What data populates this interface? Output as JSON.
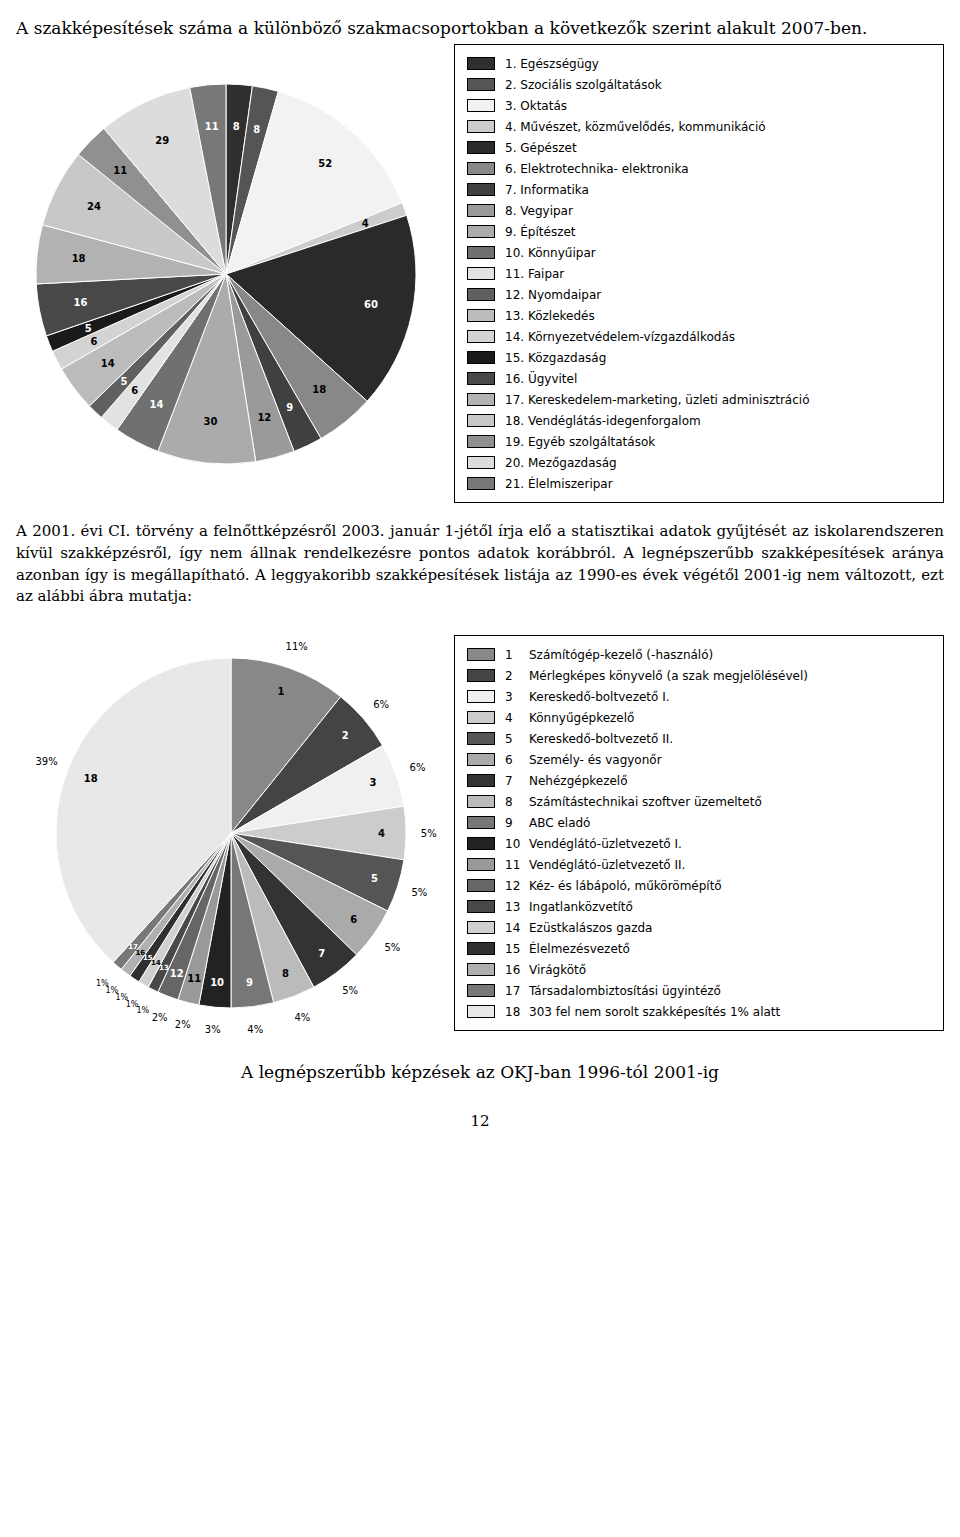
{
  "chart_data": [
    {
      "type": "pie",
      "title": "A szakképesítések száma a különböző szakmacsoportokban a következők szerint alakult 2007-ben.",
      "categories": [
        "1. Egészségügy",
        "2. Szociális szolgáltatások",
        "3. Oktatás",
        "4. Művészet, közművelődés, kommunikáció",
        "5. Gépészet",
        "6. Elektrotechnika- elektronika",
        "7. Informatika",
        "8. Vegyipar",
        "9. Építészet",
        "10. Könnyűipar",
        "11. Faipar",
        "12. Nyomdaipar",
        "13. Közlekedés",
        "14. Környezetvédelem-vízgazdálkodás",
        "15. Közgazdaság",
        "16. Ügyvitel",
        "17. Kereskedelem-marketing, üzleti adminisztráció",
        "18. Vendéglátás-idegenforgalom",
        "19. Egyéb szolgáltatások",
        "20. Mezőgazdaság",
        "21. Élelmiszeripar"
      ],
      "values": [
        8,
        8,
        52,
        4,
        60,
        18,
        9,
        12,
        30,
        14,
        6,
        5,
        14,
        6,
        5,
        16,
        18,
        24,
        11,
        29,
        11
      ],
      "colors": [
        "#2F2F2F",
        "#555555",
        "#F2F2F2",
        "#CCCCCC",
        "#2A2A2A",
        "#888888",
        "#404040",
        "#9A9A9A",
        "#ABABAB",
        "#707070",
        "#E2E2E2",
        "#606060",
        "#BCBCBC",
        "#D3D3D3",
        "#1A1A1A",
        "#484848",
        "#B2B2B2",
        "#C8C8C8",
        "#909090",
        "#DCDCDC",
        "#787878"
      ],
      "data_labels": true,
      "legend": "right"
    },
    {
      "type": "pie",
      "title": "A legnépszerűbb képzések az OKJ-ban 1996-tól 2001-ig",
      "categories": [
        "Számítógép-kezelő (-használó)",
        "Mérlegképes könyvelő (a szak megjelölésével)",
        "Kereskedő-boltvezető I.",
        "Könnyűgépkezelő",
        "Kereskedő-boltvezető II.",
        "Személy- és vagyonőr",
        "Nehézgépkezelő",
        "Számítástechnikai szoftver üzemeltető",
        "ABC eladó",
        "Vendéglátó-üzletvezető I.",
        "Vendéglátó-üzletvezető II.",
        "Kéz- és lábápoló, műkörömépítő",
        "Ingatlanközvetítő",
        "Ezüstkalászos gazda",
        "Élelmezésvezető",
        "Virágkötő",
        "Társadalombiztosítási ügyintéző",
        "303 fel nem sorolt szakképesítés 1% alatt"
      ],
      "slice_labels": [
        "1",
        "2",
        "3",
        "4",
        "5",
        "6",
        "7",
        "8",
        "9",
        "10",
        "11",
        "12",
        "13",
        "14",
        "15",
        "16",
        "17",
        "18"
      ],
      "values": [
        11,
        6,
        6,
        5,
        5,
        5,
        5,
        4,
        4,
        3,
        2,
        2,
        1,
        1,
        1,
        1,
        1,
        39
      ],
      "value_labels": [
        "11%",
        "6%",
        "6%",
        "5%",
        "5%",
        "5%",
        "5%",
        "4%",
        "4%",
        "3%",
        "2%",
        "2%",
        "1%",
        "1%",
        "1%",
        "1%",
        "1%",
        "39%"
      ],
      "colors": [
        "#888888",
        "#444444",
        "#F0F0F0",
        "#CCCCCC",
        "#555555",
        "#AAAAAA",
        "#333333",
        "#BBBBBB",
        "#777777",
        "#222222",
        "#999999",
        "#666666",
        "#484848",
        "#D0D0D0",
        "#2F2F2F",
        "#B0B0B0",
        "#787878",
        "#E8E8E8"
      ],
      "data_labels": true,
      "legend": "right"
    }
  ],
  "annotations": [
    "A 2001. évi CI. törvény a felnőttképzésről 2003. január 1-jétől írja elő a statisztikai adatok gyűjtését az iskolarendszeren kívül szakképzésről, így nem állnak rendelkezésre pontos adatok korábbról. A legnépszerűbb szakképesítések aránya azonban így is megállapítható. A leggyakoribb szakképesítések listája az 1990-es évek végétől 2001-ig nem változott, ezt az alábbi ábra mutatja:",
    "12"
  ]
}
